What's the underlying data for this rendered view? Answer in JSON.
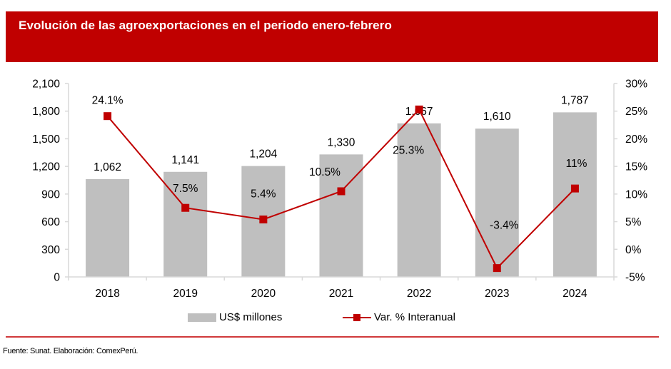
{
  "header": {
    "title": "Evolución de las agroexportaciones en el periodo enero-febrero"
  },
  "colors": {
    "title_bg": "#C00000",
    "bar": "#BFBFBF",
    "line": "#C00000",
    "footer_rule": "#D0393B"
  },
  "chart_data": {
    "type": "bar+line",
    "title": "Evolución de las agroexportaciones en el periodo enero-febrero",
    "categories": [
      "2018",
      "2019",
      "2020",
      "2021",
      "2022",
      "2023",
      "2024"
    ],
    "series": [
      {
        "name": "US$ millones",
        "type": "bar",
        "axis": "left",
        "values": [
          1062,
          1141,
          1204,
          1330,
          1667,
          1610,
          1787
        ],
        "labels": [
          "1,062",
          "1,141",
          "1,204",
          "1,330",
          "1,667",
          "1,610",
          "1,787"
        ]
      },
      {
        "name": "Var. % Interanual",
        "type": "line",
        "axis": "right",
        "marker": "square",
        "values": [
          24.1,
          7.5,
          5.4,
          10.5,
          25.3,
          -3.4,
          11.0
        ],
        "labels": [
          "24.1%",
          "7.5%",
          "5.4%",
          "10.5%",
          "25.3%",
          "-3.4%",
          "11%"
        ]
      }
    ],
    "y_left": {
      "range": [
        0,
        2100
      ],
      "ticks": [
        0,
        300,
        600,
        900,
        1200,
        1500,
        1800,
        2100
      ],
      "tick_labels": [
        "0",
        "300",
        "600",
        "900",
        "1,200",
        "1,500",
        "1,800",
        "2,100"
      ]
    },
    "y_right": {
      "range": [
        -5,
        30
      ],
      "ticks": [
        -5,
        0,
        5,
        10,
        15,
        20,
        25,
        30
      ],
      "tick_labels": [
        "-5%",
        "0%",
        "5%",
        "10%",
        "15%",
        "20%",
        "25%",
        "30%"
      ]
    },
    "xlabel": "",
    "ylabel": "",
    "grid": false,
    "legend": {
      "position": "bottom",
      "entries": [
        "US$ millones",
        "Var. % Interanual"
      ]
    }
  },
  "footer": {
    "source": "Fuente: Sunat.  Elaboración: ComexPerú."
  }
}
